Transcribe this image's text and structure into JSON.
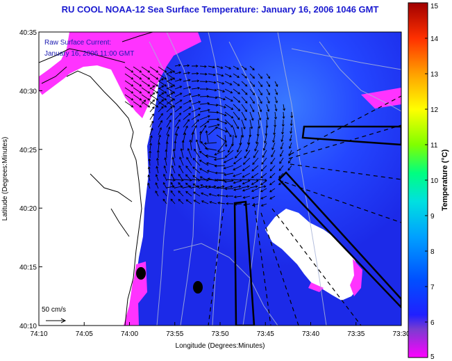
{
  "title": "RU COOL  NOAA-12  Sea Surface Temperature:  January 16, 2006 1046 GMT",
  "annotation": {
    "line1": "Raw Surface Current:",
    "line2": "January 16, 2006 11:00 GMT"
  },
  "scale_label": "50 cm/s",
  "chart_data": {
    "type": "heatmap",
    "xlabel": "Longitude (Degrees:Minutes)",
    "ylabel": "Latitude (Degrees:Minutes)",
    "x_ticks": [
      "74:10",
      "74:05",
      "74:00",
      "73:55",
      "73:50",
      "73:45",
      "73:40",
      "73:35",
      "73:30"
    ],
    "y_ticks": [
      "40:10",
      "40:15",
      "40:20",
      "40:25",
      "40:30",
      "40:35"
    ],
    "xlim": [
      "74:10",
      "73:30"
    ],
    "ylim": [
      "40:10",
      "40:35"
    ],
    "colorbar": {
      "label": "Temperature (°C)",
      "min": 5,
      "max": 15,
      "ticks": [
        "5",
        "6",
        "7",
        "8",
        "9",
        "10",
        "11",
        "12",
        "13",
        "14",
        "15"
      ]
    }
  },
  "colors": {
    "title": "#1a1ad0",
    "ocean": "#1e3cf0",
    "cold_coastal": "#ff33ff",
    "land": "#ffffff"
  }
}
